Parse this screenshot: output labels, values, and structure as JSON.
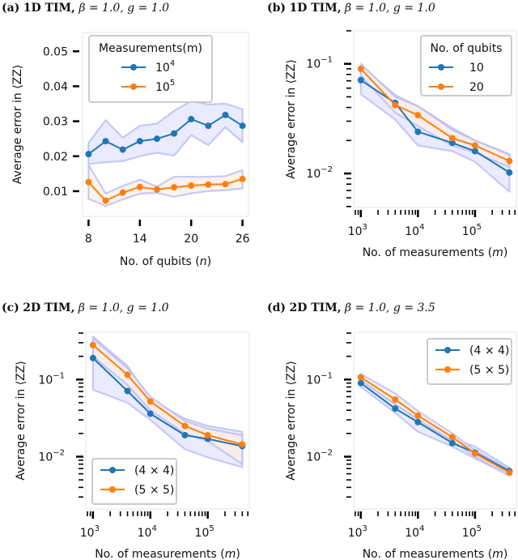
{
  "figure": {
    "panels_count": 4
  },
  "chart_data": [
    {
      "id": "a",
      "type": "line",
      "title_label": "(a)",
      "title_bold": "1D TIM,",
      "title_math": "β = 1.0, g = 1.0",
      "xlabel": "No. of qubits (n)",
      "ylabel": "Average error in ⟨ZZ⟩",
      "xscale": "linear",
      "yscale": "linear",
      "xlim": [
        7.3,
        26.7
      ],
      "ylim": [
        0.0028,
        0.0554
      ],
      "xticks": [
        8,
        14,
        20,
        26
      ],
      "xtick_labels": [
        "8",
        "14",
        "20",
        "26"
      ],
      "yticks": [
        0.01,
        0.02,
        0.03,
        0.04,
        0.05
      ],
      "ytick_labels": [
        "0.01",
        "0.02",
        "0.03",
        "0.04",
        "0.05"
      ],
      "legend_title": "Measurements(m)",
      "legend_location": "upper-left",
      "x": [
        8,
        10,
        12,
        14,
        16,
        18,
        20,
        22,
        24,
        26
      ],
      "series": [
        {
          "name": "10^4",
          "label_base": "10",
          "label_exp": "4",
          "color": "#1f77b4",
          "values": [
            0.0206,
            0.0243,
            0.0219,
            0.0243,
            0.025,
            0.0265,
            0.0306,
            0.0287,
            0.0318,
            0.0287
          ],
          "band_low": [
            0.0178,
            0.0183,
            0.0186,
            0.02,
            0.021,
            0.0202,
            0.026,
            0.0232,
            0.0283,
            0.024
          ],
          "band_high": [
            0.0238,
            0.0303,
            0.0253,
            0.0287,
            0.0293,
            0.033,
            0.0358,
            0.0348,
            0.035,
            0.0335
          ],
          "band_color": "#e3e4ff"
        },
        {
          "name": "10^5",
          "label_base": "10",
          "label_exp": "5",
          "color": "#ff7f0e",
          "values": [
            0.0126,
            0.0073,
            0.0096,
            0.0112,
            0.0105,
            0.0111,
            0.0116,
            0.0119,
            0.012,
            0.0135
          ],
          "band_low": [
            0.0078,
            0.0058,
            0.0077,
            0.0093,
            0.0095,
            0.0084,
            0.0094,
            0.01,
            0.0103,
            0.0108
          ],
          "band_high": [
            0.0175,
            0.0093,
            0.0115,
            0.0133,
            0.0113,
            0.0141,
            0.0141,
            0.0141,
            0.0143,
            0.016
          ],
          "band_color": "#fdeee6"
        }
      ]
    },
    {
      "id": "b",
      "type": "line",
      "title_label": "(b)",
      "title_bold": "1D TIM,",
      "title_math": "β = 1.0, g = 1.0",
      "xlabel": "No. of measurements (m)",
      "ylabel": "Average error in ⟨ZZ⟩",
      "xscale": "log",
      "yscale": "log",
      "xlim": [
        750,
        530000
      ],
      "ylim": [
        0.0049,
        0.2
      ],
      "xticks": [
        1000,
        10000,
        100000
      ],
      "xtick_labels": [
        [
          "10",
          "3"
        ],
        [
          "10",
          "4"
        ],
        [
          "10",
          "5"
        ]
      ],
      "yticks": [
        0.01,
        0.1
      ],
      "ytick_labels": [
        [
          "10",
          "−2"
        ],
        [
          "10",
          "−1"
        ]
      ],
      "legend_title": "No. of qubits",
      "legend_location": "upper-right",
      "x": [
        1000,
        4000,
        10000,
        40000,
        100000,
        400000
      ],
      "series": [
        {
          "name": "10",
          "color": "#1f77b4",
          "values": [
            0.071,
            0.044,
            0.024,
            0.019,
            0.016,
            0.0102
          ],
          "band_low": [
            0.053,
            0.031,
            0.018,
            0.016,
            0.0128,
            0.0068
          ],
          "band_high": [
            0.096,
            0.052,
            0.041,
            0.026,
            0.02,
            0.015
          ],
          "band_color": "#e3e4ff"
        },
        {
          "name": "20",
          "color": "#ff7f0e",
          "values": [
            0.09,
            0.042,
            0.034,
            0.021,
            0.018,
            0.013
          ],
          "band_low": [
            0.078,
            0.036,
            0.027,
            0.018,
            0.0155,
            0.0115
          ],
          "band_high": [
            0.1,
            0.05,
            0.041,
            0.025,
            0.02,
            0.0148
          ],
          "band_color": "#fdeee6"
        }
      ]
    },
    {
      "id": "c",
      "type": "line",
      "title_label": "(c)",
      "title_bold": "2D TIM,",
      "title_math": "β = 1.0, g = 1.0",
      "xlabel": "No. of measurements (m)",
      "ylabel": "Average error  in ⟨ZZ⟩",
      "xscale": "log",
      "yscale": "log",
      "xlim": [
        750,
        530000
      ],
      "ylim": [
        0.0021,
        0.41
      ],
      "xticks": [
        1000,
        10000,
        100000
      ],
      "xtick_labels": [
        [
          "10",
          "3"
        ],
        [
          "10",
          "4"
        ],
        [
          "10",
          "5"
        ]
      ],
      "yticks": [
        0.01,
        0.1
      ],
      "ytick_labels": [
        [
          "10",
          "−2"
        ],
        [
          "10",
          "−1"
        ]
      ],
      "legend_title": "",
      "legend_location": "lower-left",
      "x": [
        1000,
        4000,
        10000,
        40000,
        100000,
        400000
      ],
      "series": [
        {
          "name": "(4 × 4)",
          "color": "#1f77b4",
          "values": [
            0.19,
            0.071,
            0.036,
            0.019,
            0.017,
            0.0137
          ],
          "band_low": [
            0.074,
            0.05,
            0.03,
            0.0125,
            0.0098,
            0.0073
          ],
          "band_high": [
            0.36,
            0.15,
            0.055,
            0.031,
            0.025,
            0.021
          ],
          "band_color": "#e3e4ff"
        },
        {
          "name": "(5 × 5)",
          "color": "#ff7f0e",
          "values": [
            0.28,
            0.115,
            0.052,
            0.025,
            0.019,
            0.0144
          ],
          "band_low": [
            0.2,
            0.085,
            0.04,
            0.02,
            0.016,
            0.008
          ],
          "band_high": [
            0.34,
            0.14,
            0.06,
            0.029,
            0.023,
            0.019
          ],
          "band_color": "#fdeee6"
        }
      ]
    },
    {
      "id": "d",
      "type": "line",
      "title_label": "(d)",
      "title_bold": "2D TIM,",
      "title_math": "β = 1.0, g = 3.5",
      "xlabel": "No. of measurements (m)",
      "ylabel": "Average error  in ⟨ZZ⟩",
      "xscale": "log",
      "yscale": "log",
      "xlim": [
        750,
        530000
      ],
      "ylim": [
        0.0021,
        0.41
      ],
      "xticks": [
        1000,
        10000,
        100000
      ],
      "xtick_labels": [
        [
          "10",
          "3"
        ],
        [
          "10",
          "4"
        ],
        [
          "10",
          "5"
        ]
      ],
      "yticks": [
        0.01,
        0.1
      ],
      "ytick_labels": [
        [
          "10",
          "−2"
        ],
        [
          "10",
          "−1"
        ]
      ],
      "legend_title": "",
      "legend_location": "upper-right",
      "x": [
        1000,
        4000,
        10000,
        40000,
        100000,
        400000
      ],
      "series": [
        {
          "name": "(4 × 4)",
          "color": "#1f77b4",
          "values": [
            0.09,
            0.042,
            0.028,
            0.015,
            0.0113,
            0.0065
          ],
          "band_low": [
            0.08,
            0.037,
            0.021,
            0.0135,
            0.0095,
            0.0057
          ],
          "band_high": [
            0.1,
            0.048,
            0.031,
            0.017,
            0.0135,
            0.0072
          ],
          "band_color": "#e3e4ff"
        },
        {
          "name": "(5 × 5)",
          "color": "#ff7f0e",
          "values": [
            0.107,
            0.055,
            0.034,
            0.018,
            0.011,
            0.0062
          ],
          "band_low": [
            0.098,
            0.048,
            0.03,
            0.016,
            0.01,
            0.0057
          ],
          "band_high": [
            0.118,
            0.066,
            0.039,
            0.02,
            0.012,
            0.0068
          ],
          "band_color": "#fdeee6"
        }
      ]
    }
  ]
}
